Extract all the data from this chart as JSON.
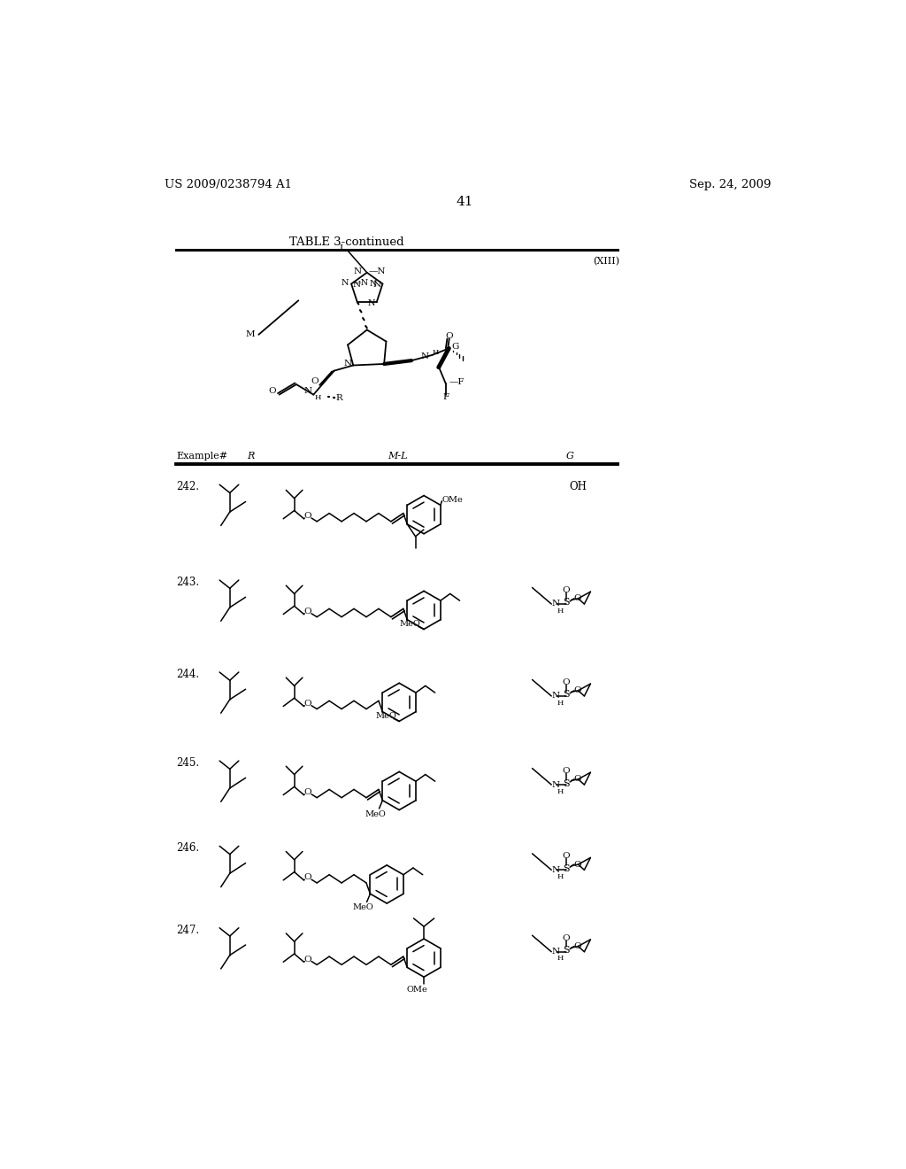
{
  "page_number": "41",
  "patent_number": "US 2009/0238794 A1",
  "patent_date": "Sep. 24, 2009",
  "table_title": "TABLE 3-continued",
  "compound_label": "(XIII)",
  "bg_color": "#ffffff"
}
